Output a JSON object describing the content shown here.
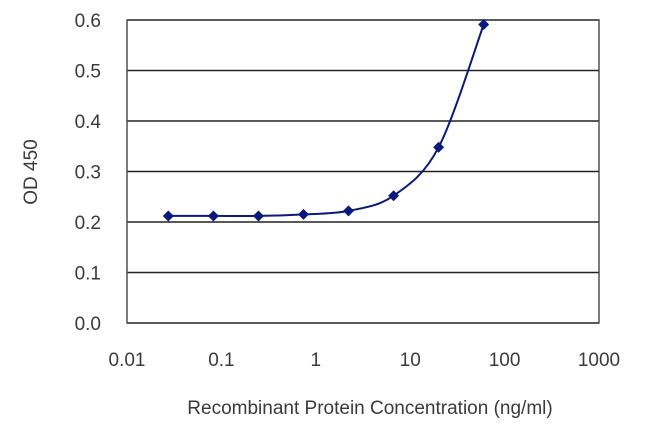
{
  "chart_data": {
    "type": "line",
    "title": "",
    "xlabel": "Recombinant Protein Concentration (ng/ml)",
    "ylabel": "OD 450",
    "xscale": "log",
    "xlim": [
      0.01,
      1000
    ],
    "ylim": [
      0.0,
      0.6
    ],
    "x_ticks": [
      "0.01",
      "0.1",
      "1",
      "10",
      "100",
      "1000"
    ],
    "y_ticks": [
      "0.0",
      "0.1",
      "0.2",
      "0.3",
      "0.4",
      "0.5",
      "0.6"
    ],
    "grid": "horizontal",
    "legend": "none",
    "series": [
      {
        "color": "#0a1a7a",
        "x": [
          0.0274,
          0.0823,
          0.247,
          0.741,
          2.22,
          6.67,
          20,
          60
        ],
        "y": [
          0.212,
          0.212,
          0.212,
          0.215,
          0.222,
          0.252,
          0.348,
          0.591
        ]
      }
    ]
  }
}
